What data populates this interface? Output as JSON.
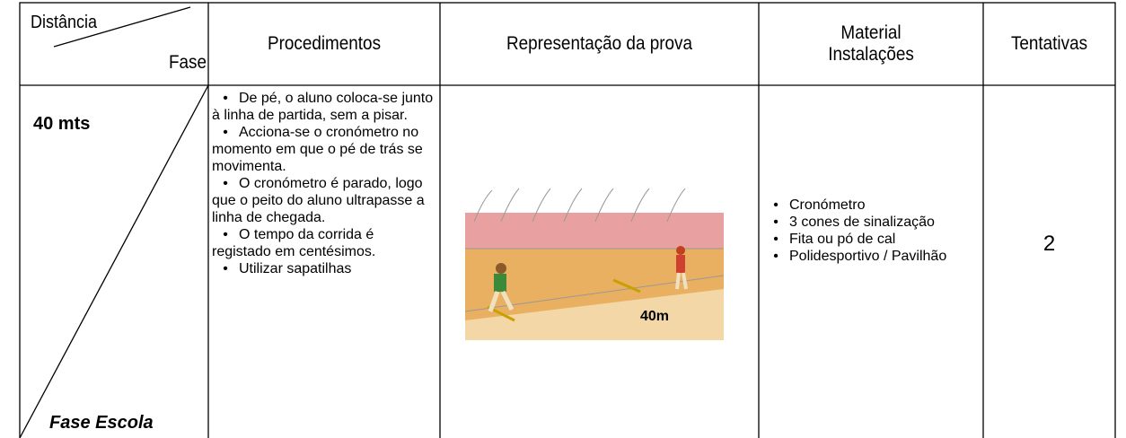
{
  "header": {
    "distance": "Distância",
    "phase": "Fase",
    "procedures": "Procedimentos",
    "representation": "Representação da prova",
    "material": [
      "Material",
      "Instalações"
    ],
    "attempts": "Tentativas"
  },
  "row": {
    "distance": "40 mts",
    "phase": "Fase Escola",
    "procedures": [
      "De pé, o aluno coloca-se junto à linha de partida, sem a pisar.",
      "Acciona-se o cronómetro no momento em que o pé de trás se movimenta.",
      "O cronómetro é parado, logo que o peito do aluno ultrapasse a linha de chegada.",
      "O tempo da corrida é registado em centésimos.",
      "Utilizar sapatilhas"
    ],
    "image_label": "40m",
    "materials": [
      "Cronómetro",
      "3 cones de sinalização",
      "Fita ou pó de cal",
      "Polidesportivo / Pavilhão"
    ],
    "attempts": "2"
  }
}
